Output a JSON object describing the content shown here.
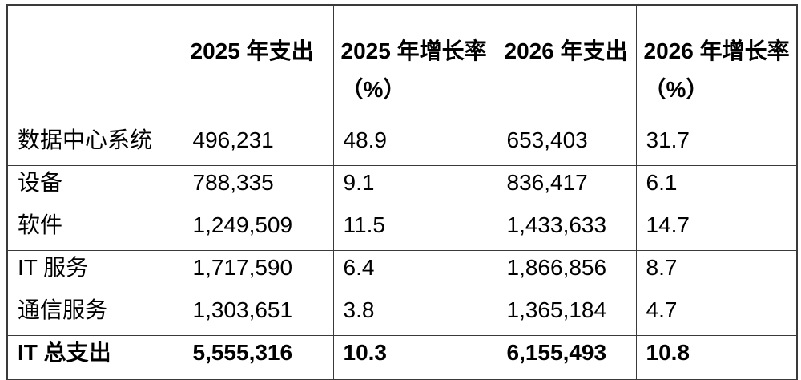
{
  "page": {
    "background_color": "#ffffff",
    "text_color": "#000000",
    "border_color": "#3a3a3a"
  },
  "chart_data": {
    "type": "table",
    "title": "",
    "columns": [
      {
        "label": "",
        "line1": "",
        "line2": ""
      },
      {
        "label": "2025 年支出",
        "line1": "2025 年支出",
        "line2": ""
      },
      {
        "label": "2025 年增长率（%）",
        "line1": "2025 年增长率",
        "line2": "（%）"
      },
      {
        "label": "2026 年支出",
        "line1": "2026 年支出",
        "line2": ""
      },
      {
        "label": "2026 年增长率（%）",
        "line1": "2026 年增长率",
        "line2": "（%）"
      }
    ],
    "categories": [
      "数据中心系统",
      "设备",
      "软件",
      "IT 服务",
      "通信服务",
      "IT 总支出"
    ],
    "series": [
      {
        "name": "2025 年支出",
        "values": [
          496231,
          788335,
          1249509,
          1717590,
          1303651,
          5555316
        ]
      },
      {
        "name": "2025 年增长率（%）",
        "values": [
          48.9,
          9.1,
          11.5,
          6.4,
          3.8,
          10.3
        ]
      },
      {
        "name": "2026 年支出",
        "values": [
          653403,
          836417,
          1433633,
          1866856,
          1365184,
          6155493
        ]
      },
      {
        "name": "2026 年增长率（%）",
        "values": [
          31.7,
          6.1,
          14.7,
          8.7,
          4.7,
          10.8
        ]
      }
    ],
    "rows": [
      {
        "category": "数据中心系统",
        "cells": [
          "496,231",
          "48.9",
          "653,403",
          "31.7"
        ],
        "bold": false
      },
      {
        "category": "设备",
        "cells": [
          "788,335",
          "9.1",
          "836,417",
          "6.1"
        ],
        "bold": false
      },
      {
        "category": "软件",
        "cells": [
          "1,249,509",
          "11.5",
          "1,433,633",
          "14.7"
        ],
        "bold": false
      },
      {
        "category": "IT 服务",
        "cells": [
          "1,717,590",
          "6.4",
          "1,866,856",
          "8.7"
        ],
        "bold": false
      },
      {
        "category": "通信服务",
        "cells": [
          "1,303,651",
          "3.8",
          "1,365,184",
          "4.7"
        ],
        "bold": false
      },
      {
        "category": "IT 总支出",
        "cells": [
          "5,555,316",
          "10.3",
          "6,155,493",
          "10.8"
        ],
        "bold": true
      }
    ]
  }
}
